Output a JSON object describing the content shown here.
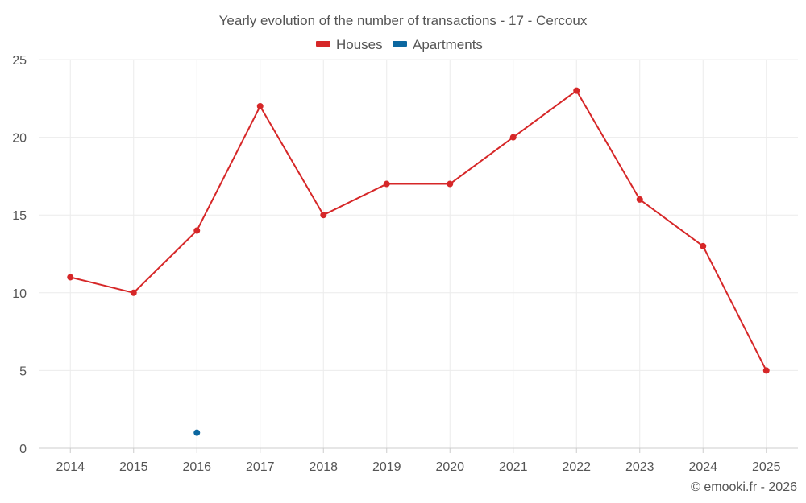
{
  "chart_data": {
    "type": "line",
    "title": "Yearly evolution of the number of transactions - 17 - Cercoux",
    "categories": [
      "2014",
      "2015",
      "2016",
      "2017",
      "2018",
      "2019",
      "2020",
      "2021",
      "2022",
      "2023",
      "2024",
      "2025"
    ],
    "series": [
      {
        "name": "Houses",
        "color": "#d62728",
        "values": [
          11,
          10,
          14,
          22,
          15,
          17,
          17,
          20,
          23,
          16,
          13,
          5
        ]
      },
      {
        "name": "Apartments",
        "color": "#0b67a0",
        "values": [
          null,
          null,
          1,
          null,
          null,
          null,
          null,
          null,
          null,
          null,
          null,
          null
        ]
      }
    ],
    "ylim": [
      0,
      25
    ],
    "yticks": [
      0,
      5,
      10,
      15,
      20,
      25
    ],
    "xlabel": "",
    "ylabel": "",
    "grid": true,
    "legend": "top-center"
  },
  "credit": "© emooki.fr - 2026"
}
